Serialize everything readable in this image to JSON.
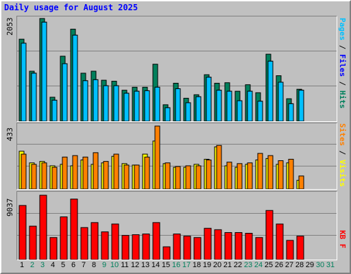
{
  "title": "Daily usage for August 2025",
  "labels": {
    "hits_max": "2053",
    "sites_max": "433",
    "kb_max": "9037",
    "right_top": {
      "pages": "Pages",
      "sep1": " / ",
      "files": "Files",
      "sep2": " / ",
      "hits": "Hits"
    },
    "right_mid": {
      "sites": "Sites",
      "sep": " / ",
      "visits": "Visits"
    },
    "right_bottom": "KB F"
  },
  "colors": {
    "hits": "#00805c",
    "files": "#0000ff",
    "pages": "#00c0ff",
    "visits": "#ffff00",
    "sites": "#ff8000",
    "kbytes": "#ff0000",
    "weekday": "#000000",
    "weekend": "#00805c"
  },
  "days": [
    "1",
    "2",
    "3",
    "4",
    "5",
    "6",
    "7",
    "8",
    "9",
    "10",
    "11",
    "12",
    "13",
    "14",
    "15",
    "16",
    "17",
    "18",
    "19",
    "20",
    "21",
    "22",
    "23",
    "24",
    "25",
    "26",
    "27",
    "28",
    "29",
    "30",
    "31"
  ],
  "weekend_days": [
    2,
    3,
    9,
    10,
    16,
    17,
    23,
    24,
    30,
    31
  ],
  "chart_data": [
    {
      "type": "bar",
      "title": "Daily usage for August 2025",
      "ylim": [
        0,
        2053
      ],
      "categories": [
        "1",
        "2",
        "3",
        "4",
        "5",
        "6",
        "7",
        "8",
        "9",
        "10",
        "11",
        "12",
        "13",
        "14",
        "15",
        "16",
        "17",
        "18",
        "19",
        "20",
        "21",
        "22",
        "23",
        "24",
        "25",
        "26",
        "27",
        "28",
        "29",
        "30",
        "31"
      ],
      "series": [
        {
          "name": "Hits",
          "values": [
            1640,
            1000,
            2053,
            480,
            1300,
            1840,
            960,
            1000,
            820,
            800,
            620,
            680,
            680,
            1140,
            330,
            760,
            460,
            530,
            930,
            760,
            770,
            600,
            730,
            570,
            1340,
            910,
            450,
            640,
            0,
            0,
            0
          ]
        },
        {
          "name": "Files",
          "values": [
            1560,
            960,
            1980,
            420,
            1150,
            1720,
            810,
            830,
            710,
            710,
            560,
            600,
            610,
            680,
            270,
            650,
            370,
            490,
            880,
            620,
            600,
            410,
            600,
            400,
            1200,
            780,
            350,
            620,
            0,
            0,
            0
          ]
        },
        {
          "name": "Pages",
          "values": [
            1560,
            960,
            1980,
            420,
            1150,
            1720,
            810,
            830,
            710,
            710,
            560,
            600,
            610,
            680,
            270,
            650,
            370,
            490,
            880,
            620,
            600,
            410,
            600,
            400,
            1200,
            780,
            350,
            620,
            0,
            0,
            0
          ]
        }
      ]
    },
    {
      "type": "bar",
      "ylim": [
        0,
        433
      ],
      "categories": [
        "1",
        "2",
        "3",
        "4",
        "5",
        "6",
        "7",
        "8",
        "9",
        "10",
        "11",
        "12",
        "13",
        "14",
        "15",
        "16",
        "17",
        "18",
        "19",
        "20",
        "21",
        "22",
        "23",
        "24",
        "25",
        "26",
        "27",
        "28",
        "29",
        "30",
        "31"
      ],
      "series": [
        {
          "name": "Visits",
          "values": [
            260,
            180,
            190,
            160,
            170,
            160,
            200,
            170,
            180,
            225,
            175,
            165,
            240,
            330,
            175,
            150,
            150,
            170,
            205,
            290,
            160,
            150,
            170,
            200,
            210,
            170,
            180,
            60,
            0,
            0,
            0
          ]
        },
        {
          "name": "Sites",
          "values": [
            240,
            170,
            180,
            150,
            220,
            230,
            220,
            250,
            190,
            240,
            165,
            165,
            220,
            433,
            180,
            155,
            160,
            160,
            200,
            300,
            185,
            175,
            180,
            245,
            230,
            195,
            205,
            90,
            0,
            0,
            0
          ]
        }
      ]
    },
    {
      "type": "bar",
      "ylim": [
        0,
        9037
      ],
      "categories": [
        "1",
        "2",
        "3",
        "4",
        "5",
        "6",
        "7",
        "8",
        "9",
        "10",
        "11",
        "12",
        "13",
        "14",
        "15",
        "16",
        "17",
        "18",
        "19",
        "20",
        "21",
        "22",
        "23",
        "24",
        "25",
        "26",
        "27",
        "28",
        "29",
        "30",
        "31"
      ],
      "series": [
        {
          "name": "KBytes",
          "values": [
            7600,
            4700,
            9037,
            3100,
            6000,
            8500,
            4500,
            5200,
            3900,
            5000,
            3400,
            3500,
            3600,
            5200,
            1800,
            3600,
            3300,
            3100,
            4400,
            4200,
            3800,
            3800,
            3700,
            3100,
            6900,
            5000,
            2700,
            3300,
            0,
            0,
            0
          ]
        }
      ]
    }
  ]
}
